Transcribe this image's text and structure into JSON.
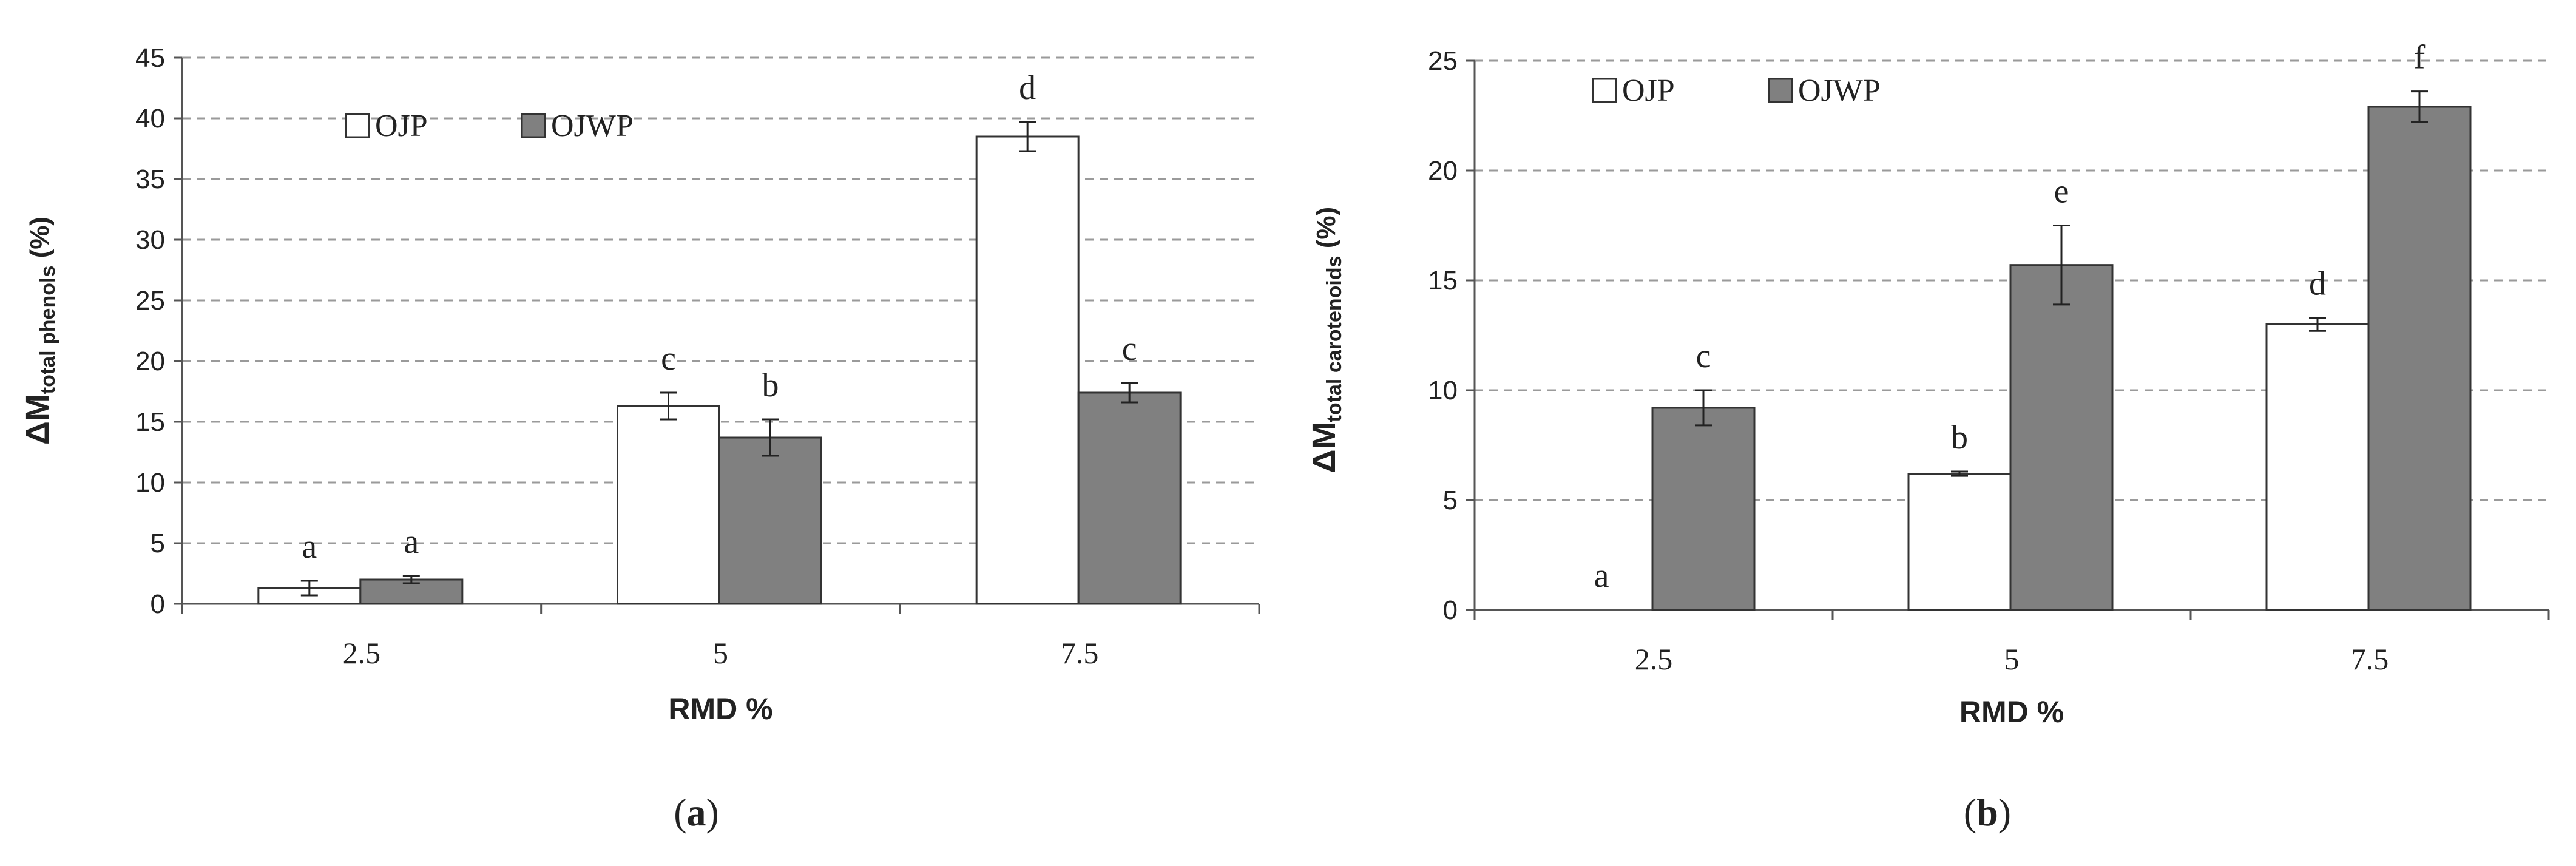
{
  "chart_data": [
    {
      "type": "bar",
      "panel_label": "a",
      "ylabel_main": "ΔM",
      "ylabel_sub": "total phenols",
      "ylabel_unit": " (%)",
      "xlabel": "RMD %",
      "categories": [
        "2.5",
        "5",
        "7.5"
      ],
      "ylim": [
        0,
        45
      ],
      "yticks": [
        0,
        5,
        10,
        15,
        20,
        25,
        30,
        35,
        40,
        45
      ],
      "grid": true,
      "legend_position": "top-left",
      "series": [
        {
          "name": "OJP",
          "color": "#ffffff",
          "values": [
            1.3,
            16.3,
            38.5
          ],
          "errors": [
            0.6,
            1.1,
            1.2
          ],
          "letters": [
            "a",
            "c",
            "d"
          ]
        },
        {
          "name": "OJWP",
          "color": "#808080",
          "values": [
            2.0,
            13.7,
            17.4
          ],
          "errors": [
            0.3,
            1.5,
            0.8
          ],
          "letters": [
            "a",
            "b",
            "c"
          ]
        }
      ]
    },
    {
      "type": "bar",
      "panel_label": "b",
      "ylabel_main": "ΔM",
      "ylabel_sub": "total carotenoids",
      "ylabel_unit": " (%)",
      "xlabel": "RMD %",
      "categories": [
        "2.5",
        "5",
        "7.5"
      ],
      "ylim": [
        0,
        25
      ],
      "yticks": [
        0,
        5,
        10,
        15,
        20,
        25
      ],
      "grid": true,
      "legend_position": "top-left",
      "series": [
        {
          "name": "OJP",
          "color": "#ffffff",
          "values": [
            0.0,
            6.2,
            13.0
          ],
          "errors": [
            0.0,
            0.1,
            0.3
          ],
          "letters": [
            "a",
            "b",
            "d"
          ]
        },
        {
          "name": "OJWP",
          "color": "#808080",
          "values": [
            9.2,
            15.7,
            22.9
          ],
          "errors": [
            0.8,
            1.8,
            0.7
          ],
          "letters": [
            "c",
            "e",
            "f"
          ]
        }
      ]
    }
  ]
}
